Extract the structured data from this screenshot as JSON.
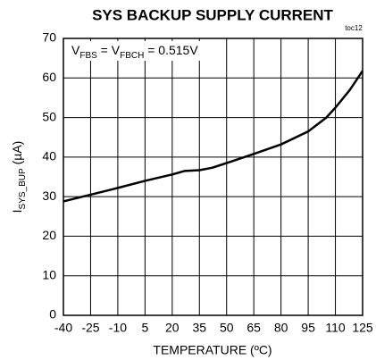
{
  "chart_data": {
    "type": "line",
    "title": "SYS BACKUP SUPPLY CURRENT",
    "tag": "toc12",
    "annotation": [
      "V",
      "FBS",
      " = V",
      "FBCH",
      " = 0.515V"
    ],
    "xlabel": "TEMPERATURE (ºC)",
    "ylabel": [
      "I",
      "SYS_BUP",
      " (µA)"
    ],
    "series": [
      {
        "color": "#000000",
        "x": [
          -40,
          -25,
          -10,
          5,
          20,
          27,
          35,
          42,
          50,
          65,
          80,
          95,
          105,
          110,
          118,
          125
        ],
        "values": [
          28.8,
          30.5,
          32.2,
          34,
          35.6,
          36.5,
          36.7,
          37.3,
          38.5,
          40.8,
          43.2,
          46.5,
          50,
          52.5,
          57,
          61.8
        ]
      }
    ],
    "xlim": [
      -40,
      125
    ],
    "xticks": [
      -40,
      -25,
      -10,
      5,
      20,
      35,
      50,
      65,
      80,
      95,
      110,
      125
    ],
    "ylim": [
      0,
      70
    ],
    "yticks": [
      0,
      10,
      20,
      30,
      40,
      50,
      60,
      70
    ],
    "grid": true
  }
}
